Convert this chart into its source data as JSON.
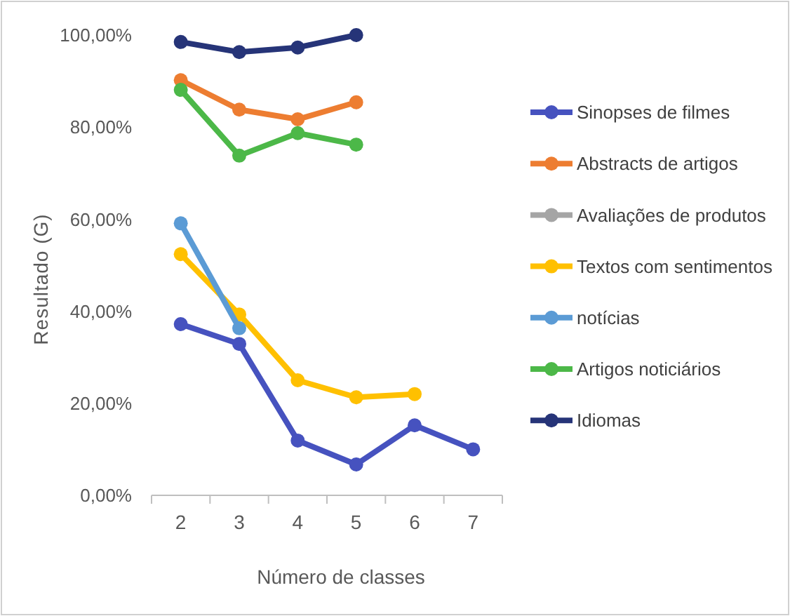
{
  "chart_data": {
    "type": "line",
    "xlabel": "Número de classes",
    "ylabel": "Resultado (G)",
    "categories": [
      "2",
      "3",
      "4",
      "5",
      "6",
      "7"
    ],
    "series": [
      {
        "name": "Sinopses de filmes",
        "color": "#4652bf",
        "values": [
          37.2,
          32.9,
          11.9,
          6.7,
          15.2,
          10
        ]
      },
      {
        "name": "Abstracts de artigos",
        "color": "#ed7d31",
        "values": [
          90.2,
          83.8,
          81.7,
          85.4,
          null,
          null
        ]
      },
      {
        "name": "Avaliações de produtos",
        "color": "#a5a5a5",
        "values": [
          null,
          null,
          null,
          null,
          null,
          null
        ]
      },
      {
        "name": "Textos com sentimentos",
        "color": "#ffc000",
        "values": [
          52.4,
          39.3,
          25,
          21.3,
          22,
          null
        ]
      },
      {
        "name": "notícias",
        "color": "#5b9bd5",
        "values": [
          59.1,
          36.3,
          null,
          null,
          null,
          null
        ]
      },
      {
        "name": "Artigos noticiários",
        "color": "#4cb848",
        "values": [
          88.1,
          73.8,
          78.7,
          76.2,
          null,
          null
        ]
      },
      {
        "name": "Idiomas",
        "color": "#263478",
        "values": [
          98.5,
          96.3,
          97.3,
          100,
          null,
          null
        ]
      }
    ],
    "ylim": [
      0,
      100
    ],
    "yticks": [
      {
        "value": 0,
        "label": "0,00%"
      },
      {
        "value": 20,
        "label": "20,00%"
      },
      {
        "value": 40,
        "label": "40,00%"
      },
      {
        "value": 60,
        "label": "60,00%"
      },
      {
        "value": 80,
        "label": "80,00%"
      },
      {
        "value": 100,
        "label": "100,00%"
      }
    ],
    "grid": false,
    "legend": "right",
    "marker": "circle",
    "line_style": "solid"
  }
}
